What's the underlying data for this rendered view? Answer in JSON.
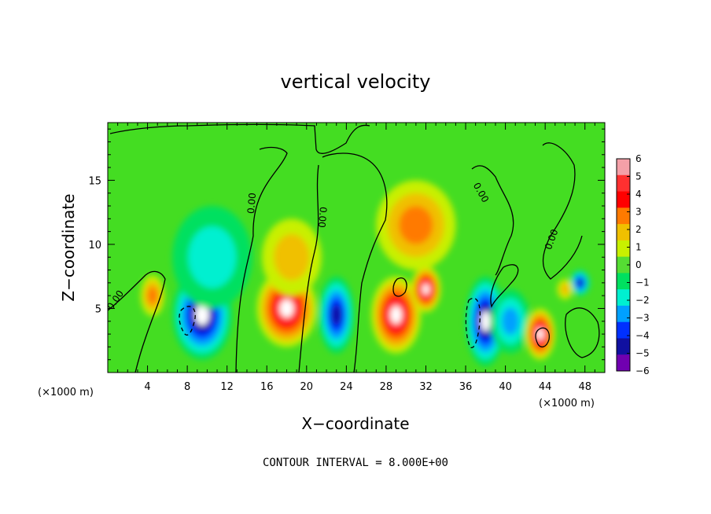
{
  "chart_data": {
    "type": "heatmap",
    "title": "vertical velocity",
    "xlabel": "X−coordinate",
    "ylabel": "Z−coordinate",
    "x_unit": "(×1000 m)",
    "z_unit": "(×1000 m)",
    "xlim": [
      0,
      50
    ],
    "ylim": [
      0,
      19.5
    ],
    "x_ticks": [
      4,
      8,
      12,
      16,
      20,
      24,
      28,
      32,
      36,
      40,
      44,
      48
    ],
    "y_ticks": [
      5,
      10,
      15
    ],
    "colorbar": {
      "ticks": [
        6,
        5,
        4,
        3,
        2,
        1,
        0,
        -1,
        -2,
        -3,
        -4,
        -5,
        -6
      ],
      "tick_labels": [
        "6",
        "5",
        "4",
        "3",
        "2",
        "1",
        "0",
        "−1",
        "−2",
        "−3",
        "−4",
        "−5",
        "−6"
      ],
      "colors": [
        "#f4a0a8",
        "#ff3030",
        "#ff0000",
        "#ff7a00",
        "#f0c000",
        "#c8f000",
        "#55dd33",
        "#00e060",
        "#00f0d0",
        "#00a0ff",
        "#0030ff",
        "#1010a0",
        "#7000b0"
      ]
    },
    "features": [
      {
        "x": 4.5,
        "z": 6.0,
        "value": 3,
        "sx": 1.2,
        "sz": 1.6
      },
      {
        "x": 9.5,
        "z": 4.5,
        "value": -6,
        "sx": 3.0,
        "sz": 3.5
      },
      {
        "x": 10.5,
        "z": 9.0,
        "value": -2.5,
        "sx": 4.0,
        "sz": 4.0
      },
      {
        "x": 18.0,
        "z": 5.0,
        "value": 6,
        "sx": 3.0,
        "sz": 3.0
      },
      {
        "x": 18.5,
        "z": 9.0,
        "value": 2,
        "sx": 3.0,
        "sz": 3.0
      },
      {
        "x": 23.0,
        "z": 4.5,
        "value": -5,
        "sx": 1.8,
        "sz": 3.0
      },
      {
        "x": 29.0,
        "z": 4.5,
        "value": 6,
        "sx": 2.5,
        "sz": 3.0
      },
      {
        "x": 32.0,
        "z": 6.5,
        "value": 6,
        "sx": 1.5,
        "sz": 1.8
      },
      {
        "x": 31.0,
        "z": 11.5,
        "value": 3,
        "sx": 4.0,
        "sz": 3.5
      },
      {
        "x": 38.0,
        "z": 4.0,
        "value": -6,
        "sx": 2.0,
        "sz": 3.5
      },
      {
        "x": 40.5,
        "z": 4.0,
        "value": -3,
        "sx": 2.0,
        "sz": 2.5
      },
      {
        "x": 43.5,
        "z": 3.0,
        "value": 6,
        "sx": 1.5,
        "sz": 2.0
      },
      {
        "x": 47.5,
        "z": 7.0,
        "value": -5,
        "sx": 1.0,
        "sz": 1.0
      },
      {
        "x": 46.0,
        "z": 6.5,
        "value": 2.5,
        "sx": 0.8,
        "sz": 0.8
      }
    ],
    "contour_labels": [
      "0.00",
      "0.00",
      "0.00",
      "0.00",
      "0.00"
    ],
    "contour_interval_text": "CONTOUR INTERVAL = 8.000E+00"
  }
}
